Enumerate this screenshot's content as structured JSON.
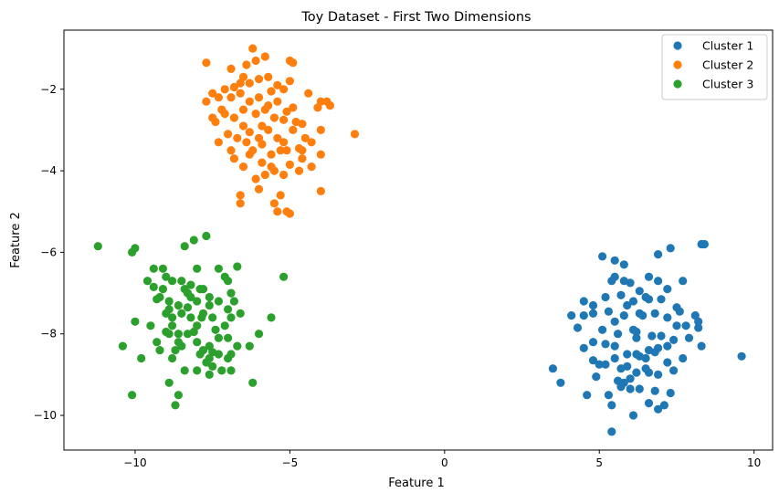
{
  "chart_data": {
    "type": "scatter",
    "title": "Toy Dataset - First Two Dimensions",
    "xlabel": "Feature 1",
    "ylabel": "Feature 2",
    "xlim": [
      -12.3,
      10.6
    ],
    "ylim": [
      -10.85,
      -0.55
    ],
    "xticks": [
      -10,
      -5,
      0,
      5,
      10
    ],
    "xtick_labels": [
      "−10",
      "−5",
      "0",
      "5",
      "10"
    ],
    "yticks": [
      -2,
      -4,
      -6,
      -8,
      -10
    ],
    "ytick_labels": [
      "−2",
      "−4",
      "−6",
      "−8",
      "−10"
    ],
    "grid": false,
    "legend_position": "top-right",
    "series": [
      {
        "name": "Cluster 1",
        "color": "#1f77b4",
        "points": [
          [
            5.1,
            -6.1
          ],
          [
            5.5,
            -6.2
          ],
          [
            5.8,
            -6.3
          ],
          [
            7.3,
            -5.9
          ],
          [
            8.3,
            -5.8
          ],
          [
            8.4,
            -5.8
          ],
          [
            6.9,
            -6.05
          ],
          [
            5.5,
            -6.6
          ],
          [
            5.4,
            -6.7
          ],
          [
            5.8,
            -6.7
          ],
          [
            6.0,
            -6.75
          ],
          [
            6.6,
            -6.6
          ],
          [
            6.9,
            -6.7
          ],
          [
            7.2,
            -6.9
          ],
          [
            7.7,
            -6.7
          ],
          [
            4.5,
            -7.2
          ],
          [
            4.8,
            -7.3
          ],
          [
            4.8,
            -7.5
          ],
          [
            5.3,
            -7.45
          ],
          [
            5.7,
            -7.05
          ],
          [
            6.1,
            -7.2
          ],
          [
            6.5,
            -7.1
          ],
          [
            6.6,
            -7.15
          ],
          [
            7.5,
            -7.35
          ],
          [
            7.6,
            -7.45
          ],
          [
            4.1,
            -7.55
          ],
          [
            4.5,
            -7.55
          ],
          [
            5.1,
            -7.9
          ],
          [
            5.5,
            -7.7
          ],
          [
            5.8,
            -7.55
          ],
          [
            6.1,
            -7.9
          ],
          [
            6.2,
            -8.1
          ],
          [
            6.3,
            -7.5
          ],
          [
            6.8,
            -7.5
          ],
          [
            7.2,
            -7.6
          ],
          [
            7.8,
            -7.8
          ],
          [
            8.1,
            -7.55
          ],
          [
            8.2,
            -7.85
          ],
          [
            4.8,
            -8.2
          ],
          [
            5.2,
            -8.25
          ],
          [
            5.5,
            -8.3
          ],
          [
            5.9,
            -8.5
          ],
          [
            6.2,
            -7.95
          ],
          [
            6.3,
            -8.55
          ],
          [
            6.6,
            -8.4
          ],
          [
            6.9,
            -8.35
          ],
          [
            7.0,
            -8.05
          ],
          [
            7.2,
            -8.3
          ],
          [
            7.5,
            -7.8
          ],
          [
            7.9,
            -8.1
          ],
          [
            8.3,
            -8.3
          ],
          [
            4.5,
            -8.35
          ],
          [
            4.8,
            -8.65
          ],
          [
            5.0,
            -8.75
          ],
          [
            5.2,
            -8.75
          ],
          [
            5.7,
            -8.85
          ],
          [
            5.9,
            -8.8
          ],
          [
            6.2,
            -8.5
          ],
          [
            6.5,
            -8.6
          ],
          [
            6.8,
            -8.45
          ],
          [
            7.2,
            -8.7
          ],
          [
            7.4,
            -8.9
          ],
          [
            3.5,
            -8.85
          ],
          [
            3.75,
            -9.2
          ],
          [
            5.6,
            -9.15
          ],
          [
            5.8,
            -9.2
          ],
          [
            5.7,
            -9.3
          ],
          [
            6.0,
            -9.1
          ],
          [
            6.2,
            -8.95
          ],
          [
            6.3,
            -9.35
          ],
          [
            6.6,
            -8.95
          ],
          [
            6.9,
            -9.0
          ],
          [
            7.3,
            -9.45
          ],
          [
            4.6,
            -9.5
          ],
          [
            5.3,
            -9.5
          ],
          [
            5.4,
            -9.75
          ],
          [
            6.6,
            -9.7
          ],
          [
            6.9,
            -9.85
          ],
          [
            7.1,
            -9.75
          ],
          [
            6.1,
            -10.0
          ],
          [
            5.4,
            -10.4
          ],
          [
            9.6,
            -8.55
          ],
          [
            6.4,
            -7.55
          ],
          [
            5.6,
            -8.0
          ],
          [
            7.0,
            -7.15
          ],
          [
            6.5,
            -8.85
          ],
          [
            4.3,
            -7.85
          ],
          [
            7.7,
            -8.6
          ],
          [
            5.9,
            -7.3
          ],
          [
            6.7,
            -8.05
          ],
          [
            6.0,
            -9.35
          ],
          [
            7.4,
            -8.15
          ],
          [
            6.3,
            -6.95
          ],
          [
            5.2,
            -7.1
          ],
          [
            4.9,
            -9.05
          ],
          [
            8.2,
            -7.7
          ],
          [
            6.8,
            -9.4
          ],
          [
            5.5,
            -8.6
          ]
        ]
      },
      {
        "name": "Cluster 2",
        "color": "#ff7f0e",
        "points": [
          [
            -6.2,
            -1.0
          ],
          [
            -6.9,
            -1.5
          ],
          [
            -6.4,
            -1.4
          ],
          [
            -5.8,
            -1.2
          ],
          [
            -5.0,
            -1.3
          ],
          [
            -4.9,
            -1.35
          ],
          [
            -7.7,
            -1.35
          ],
          [
            -6.1,
            -1.3
          ],
          [
            -7.1,
            -2.0
          ],
          [
            -6.6,
            -1.85
          ],
          [
            -6.5,
            -1.7
          ],
          [
            -6.3,
            -1.85
          ],
          [
            -6.0,
            -1.75
          ],
          [
            -5.7,
            -1.7
          ],
          [
            -5.4,
            -1.9
          ],
          [
            -5.2,
            -2.0
          ],
          [
            -5.0,
            -1.8
          ],
          [
            -7.5,
            -2.1
          ],
          [
            -7.7,
            -2.3
          ],
          [
            -7.3,
            -2.2
          ],
          [
            -6.9,
            -2.2
          ],
          [
            -6.6,
            -2.1
          ],
          [
            -6.3,
            -2.3
          ],
          [
            -6.0,
            -2.2
          ],
          [
            -5.6,
            -2.05
          ],
          [
            -5.4,
            -2.3
          ],
          [
            -5.1,
            -2.55
          ],
          [
            -4.0,
            -2.3
          ],
          [
            -3.8,
            -2.3
          ],
          [
            -7.5,
            -2.7
          ],
          [
            -7.2,
            -2.5
          ],
          [
            -6.8,
            -2.7
          ],
          [
            -6.5,
            -2.5
          ],
          [
            -6.1,
            -2.6
          ],
          [
            -5.8,
            -2.5
          ],
          [
            -5.5,
            -2.7
          ],
          [
            -5.2,
            -2.75
          ],
          [
            -4.8,
            -2.8
          ],
          [
            -4.6,
            -2.85
          ],
          [
            -4.1,
            -2.45
          ],
          [
            -3.7,
            -2.4
          ],
          [
            -7.3,
            -3.3
          ],
          [
            -7.0,
            -3.1
          ],
          [
            -6.7,
            -3.2
          ],
          [
            -6.3,
            -3.05
          ],
          [
            -6.0,
            -3.2
          ],
          [
            -5.7,
            -3.0
          ],
          [
            -5.4,
            -3.2
          ],
          [
            -4.9,
            -3.0
          ],
          [
            -4.6,
            -3.5
          ],
          [
            -4.0,
            -3.0
          ],
          [
            -2.9,
            -3.1
          ],
          [
            -6.8,
            -3.7
          ],
          [
            -6.5,
            -3.9
          ],
          [
            -6.2,
            -3.5
          ],
          [
            -5.9,
            -3.8
          ],
          [
            -5.6,
            -3.9
          ],
          [
            -5.3,
            -3.5
          ],
          [
            -5.1,
            -3.5
          ],
          [
            -4.6,
            -3.7
          ],
          [
            -4.3,
            -3.9
          ],
          [
            -4.0,
            -3.6
          ],
          [
            -6.6,
            -4.6
          ],
          [
            -6.1,
            -4.2
          ],
          [
            -5.8,
            -4.1
          ],
          [
            -5.5,
            -4.0
          ],
          [
            -5.2,
            -4.1
          ],
          [
            -4.7,
            -4.0
          ],
          [
            -4.0,
            -4.5
          ],
          [
            -5.3,
            -4.6
          ],
          [
            -5.5,
            -4.8
          ],
          [
            -5.4,
            -5.0
          ],
          [
            -5.1,
            -5.0
          ],
          [
            -5.0,
            -5.05
          ],
          [
            -6.6,
            -4.8
          ],
          [
            -7.4,
            -2.8
          ],
          [
            -6.9,
            -3.5
          ],
          [
            -5.9,
            -2.9
          ],
          [
            -5.2,
            -3.3
          ],
          [
            -4.5,
            -3.2
          ],
          [
            -6.4,
            -3.3
          ],
          [
            -5.6,
            -3.6
          ],
          [
            -4.9,
            -2.45
          ],
          [
            -7.1,
            -2.6
          ],
          [
            -6.0,
            -4.45
          ],
          [
            -4.3,
            -3.3
          ],
          [
            -5.7,
            -2.4
          ],
          [
            -6.3,
            -3.6
          ],
          [
            -5.0,
            -3.85
          ],
          [
            -6.8,
            -1.95
          ],
          [
            -4.7,
            -3.45
          ],
          [
            -5.9,
            -3.35
          ],
          [
            -6.5,
            -2.9
          ],
          [
            -4.4,
            -2.1
          ]
        ]
      },
      {
        "name": "Cluster 3",
        "color": "#2ca02c",
        "points": [
          [
            -11.2,
            -5.85
          ],
          [
            -10.0,
            -5.9
          ],
          [
            -10.1,
            -6.0
          ],
          [
            -7.7,
            -5.6
          ],
          [
            -8.4,
            -5.85
          ],
          [
            -8.1,
            -5.7
          ],
          [
            -9.4,
            -6.4
          ],
          [
            -9.1,
            -6.4
          ],
          [
            -8.0,
            -6.4
          ],
          [
            -7.3,
            -6.4
          ],
          [
            -6.7,
            -6.35
          ],
          [
            -9.6,
            -6.7
          ],
          [
            -9.0,
            -6.6
          ],
          [
            -8.8,
            -6.7
          ],
          [
            -8.4,
            -6.9
          ],
          [
            -8.2,
            -6.8
          ],
          [
            -7.8,
            -6.9
          ],
          [
            -7.0,
            -6.7
          ],
          [
            -6.9,
            -7.0
          ],
          [
            -5.2,
            -6.6
          ],
          [
            -9.2,
            -7.1
          ],
          [
            -8.9,
            -7.2
          ],
          [
            -8.6,
            -7.3
          ],
          [
            -8.3,
            -7.0
          ],
          [
            -8.0,
            -7.2
          ],
          [
            -7.6,
            -7.3
          ],
          [
            -7.3,
            -7.2
          ],
          [
            -7.0,
            -7.4
          ],
          [
            -6.8,
            -7.2
          ],
          [
            -9.5,
            -7.8
          ],
          [
            -9.0,
            -7.5
          ],
          [
            -8.8,
            -7.8
          ],
          [
            -8.5,
            -7.5
          ],
          [
            -8.2,
            -7.6
          ],
          [
            -8.0,
            -7.8
          ],
          [
            -7.8,
            -7.5
          ],
          [
            -7.5,
            -7.6
          ],
          [
            -7.1,
            -7.8
          ],
          [
            -6.9,
            -7.6
          ],
          [
            -5.6,
            -7.6
          ],
          [
            -10.0,
            -7.7
          ],
          [
            -9.3,
            -8.2
          ],
          [
            -8.9,
            -8.0
          ],
          [
            -8.6,
            -8.2
          ],
          [
            -8.3,
            -8.0
          ],
          [
            -8.0,
            -8.2
          ],
          [
            -7.6,
            -8.3
          ],
          [
            -7.3,
            -8.1
          ],
          [
            -6.7,
            -8.3
          ],
          [
            -6.3,
            -8.3
          ],
          [
            -6.0,
            -8.0
          ],
          [
            -10.4,
            -8.3
          ],
          [
            -9.8,
            -8.6
          ],
          [
            -9.2,
            -8.4
          ],
          [
            -8.8,
            -8.6
          ],
          [
            -8.5,
            -8.3
          ],
          [
            -7.9,
            -8.5
          ],
          [
            -7.6,
            -8.6
          ],
          [
            -7.3,
            -8.5
          ],
          [
            -6.9,
            -8.5
          ],
          [
            -7.0,
            -8.6
          ],
          [
            -8.4,
            -8.9
          ],
          [
            -7.7,
            -8.7
          ],
          [
            -7.5,
            -8.8
          ],
          [
            -6.9,
            -8.9
          ],
          [
            -7.2,
            -8.9
          ],
          [
            -7.6,
            -9.0
          ],
          [
            -8.9,
            -9.2
          ],
          [
            -6.2,
            -9.2
          ],
          [
            -10.1,
            -9.5
          ],
          [
            -8.6,
            -9.5
          ],
          [
            -8.7,
            -9.75
          ],
          [
            -8.9,
            -7.4
          ],
          [
            -7.9,
            -6.9
          ],
          [
            -7.4,
            -7.9
          ],
          [
            -8.6,
            -8.0
          ],
          [
            -9.1,
            -6.9
          ],
          [
            -7.8,
            -8.4
          ],
          [
            -8.2,
            -7.1
          ],
          [
            -7.0,
            -8.1
          ],
          [
            -8.5,
            -6.7
          ],
          [
            -9.3,
            -7.15
          ],
          [
            -7.6,
            -7.1
          ],
          [
            -8.7,
            -8.4
          ],
          [
            -7.1,
            -6.6
          ],
          [
            -8.8,
            -7.6
          ],
          [
            -6.6,
            -7.5
          ],
          [
            -9.4,
            -6.85
          ],
          [
            -8.3,
            -7.35
          ],
          [
            -7.5,
            -8.45
          ],
          [
            -8.1,
            -7.95
          ],
          [
            -9.0,
            -7.95
          ],
          [
            -7.85,
            -7.6
          ],
          [
            -8.0,
            -8.9
          ]
        ]
      }
    ]
  }
}
